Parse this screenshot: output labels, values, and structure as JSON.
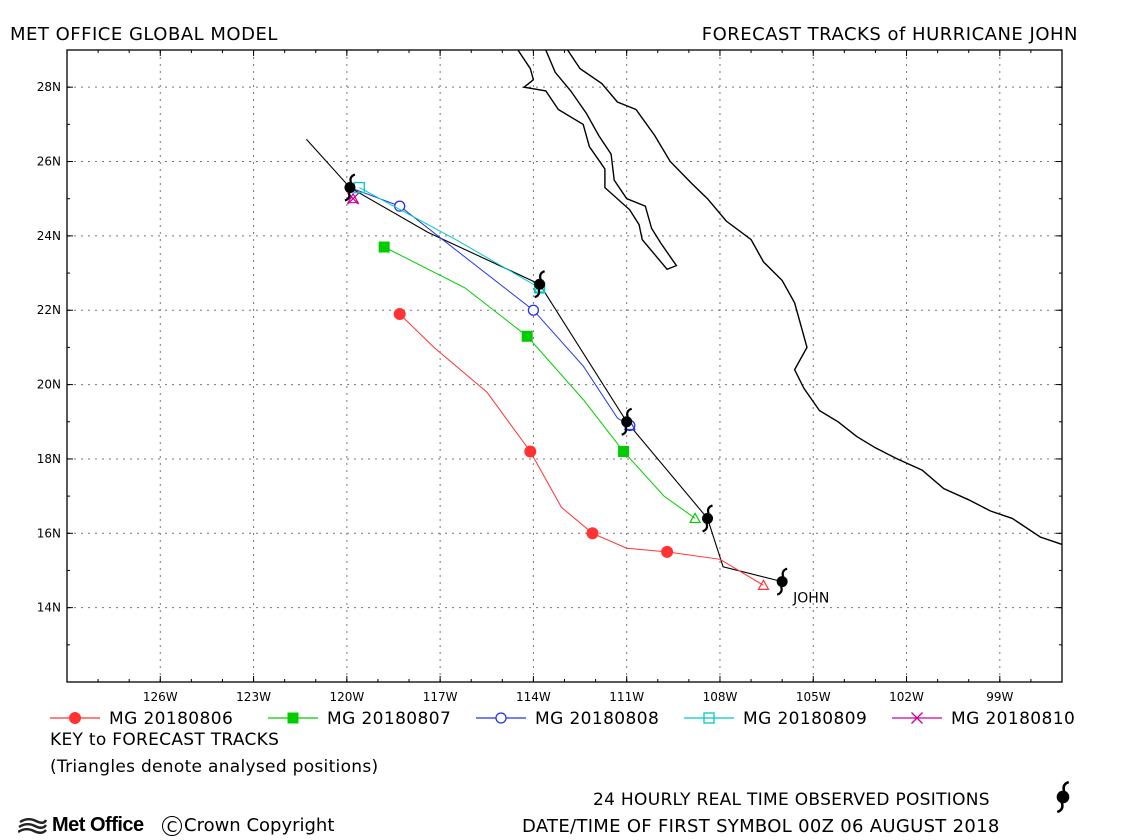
{
  "header": {
    "left": "MET OFFICE GLOBAL MODEL",
    "right": "FORECAST TRACKS of HURRICANE JOHN"
  },
  "chart_data": {
    "type": "map",
    "lon_range": [
      -129,
      -97
    ],
    "lat_range": [
      12,
      29
    ],
    "x_ticks": [
      {
        "value": -126,
        "label": "126W"
      },
      {
        "value": -123,
        "label": "123W"
      },
      {
        "value": -120,
        "label": "120W"
      },
      {
        "value": -117,
        "label": "117W"
      },
      {
        "value": -114,
        "label": "114W"
      },
      {
        "value": -111,
        "label": "111W"
      },
      {
        "value": -108,
        "label": "108W"
      },
      {
        "value": -105,
        "label": "105W"
      },
      {
        "value": -102,
        "label": "102W"
      },
      {
        "value": -99,
        "label": "99W"
      }
    ],
    "y_ticks": [
      {
        "value": 14,
        "label": "14N"
      },
      {
        "value": 16,
        "label": "16N"
      },
      {
        "value": 18,
        "label": "18N"
      },
      {
        "value": 20,
        "label": "20N"
      },
      {
        "value": 22,
        "label": "22N"
      },
      {
        "value": 24,
        "label": "24N"
      },
      {
        "value": 26,
        "label": "26N"
      },
      {
        "value": 28,
        "label": "28N"
      }
    ],
    "grid": true,
    "storm_label": "JOHN",
    "observed_track": {
      "color": "#000000",
      "points": [
        [
          -121.3,
          26.6
        ],
        [
          -119.9,
          25.3
        ],
        [
          -117.4,
          24.1
        ],
        [
          -113.8,
          22.7
        ],
        [
          -111.0,
          19.0
        ],
        [
          -108.4,
          16.4
        ],
        [
          -107.9,
          15.1
        ],
        [
          -106.0,
          14.7
        ]
      ],
      "symbols": [
        [
          -119.9,
          25.3
        ],
        [
          -113.8,
          22.7
        ],
        [
          -111.0,
          19.0
        ],
        [
          -108.4,
          16.4
        ],
        [
          -106.0,
          14.7
        ]
      ]
    },
    "series": [
      {
        "name": "MG 20180806",
        "color": "#ff3333",
        "marker": "circle-filled",
        "points": [
          [
            -106.6,
            14.6
          ],
          [
            -108.0,
            15.3
          ],
          [
            -109.7,
            15.5
          ],
          [
            -111.0,
            15.6
          ],
          [
            -112.1,
            16.0
          ],
          [
            -113.1,
            16.7
          ],
          [
            -114.1,
            18.2
          ],
          [
            -115.5,
            19.8
          ],
          [
            -117.2,
            21.0
          ],
          [
            -118.3,
            21.9
          ]
        ],
        "markers": [
          [
            -109.7,
            15.5
          ],
          [
            -112.1,
            16.0
          ],
          [
            -114.1,
            18.2
          ],
          [
            -118.3,
            21.9
          ]
        ]
      },
      {
        "name": "MG 20180807",
        "color": "#00cc00",
        "marker": "square-filled",
        "points": [
          [
            -108.8,
            16.4
          ],
          [
            -109.8,
            17.0
          ],
          [
            -111.1,
            18.2
          ],
          [
            -112.4,
            19.6
          ],
          [
            -114.2,
            21.3
          ],
          [
            -116.2,
            22.6
          ],
          [
            -118.8,
            23.7
          ]
        ],
        "markers": [
          [
            -111.1,
            18.2
          ],
          [
            -114.2,
            21.3
          ],
          [
            -118.8,
            23.7
          ]
        ]
      },
      {
        "name": "MG 20180808",
        "color": "#2233ee",
        "marker": "circle-open",
        "points": [
          [
            -110.9,
            18.9
          ],
          [
            -111.3,
            19.1
          ],
          [
            -112.4,
            20.5
          ],
          [
            -114.0,
            22.0
          ],
          [
            -116.0,
            23.3
          ],
          [
            -118.3,
            24.8
          ],
          [
            -119.9,
            25.3
          ]
        ],
        "markers": [
          [
            -110.9,
            18.9
          ],
          [
            -114.0,
            22.0
          ],
          [
            -118.3,
            24.8
          ]
        ]
      },
      {
        "name": "MG 20180809",
        "color": "#00c8c8",
        "marker": "square-open",
        "points": [
          [
            -113.8,
            22.6
          ],
          [
            -116.5,
            23.9
          ],
          [
            -119.6,
            25.3
          ]
        ],
        "markers": [
          [
            -113.8,
            22.6
          ],
          [
            -119.6,
            25.3
          ]
        ]
      },
      {
        "name": "MG 20180810",
        "color": "#cc0099",
        "marker": "cross",
        "points": [
          [
            -119.8,
            25.0
          ],
          [
            -119.9,
            25.1
          ]
        ],
        "markers": [
          [
            -119.8,
            25.0
          ]
        ]
      }
    ],
    "analysed_triangles": [
      {
        "color": "#ff3333",
        "pos": [
          -106.6,
          14.6
        ]
      },
      {
        "color": "#00cc00",
        "pos": [
          -108.8,
          16.4
        ]
      },
      {
        "color": "#2233ee",
        "pos": [
          -110.9,
          18.9
        ]
      },
      {
        "color": "#00c8c8",
        "pos": [
          -113.8,
          22.6
        ]
      },
      {
        "color": "#cc0099",
        "pos": [
          -119.8,
          25.0
        ]
      }
    ],
    "coastlines": [
      [
        [
          -114.5,
          29.0
        ],
        [
          -114.1,
          28.5
        ],
        [
          -114.0,
          28.2
        ],
        [
          -114.3,
          28.0
        ],
        [
          -113.6,
          27.9
        ],
        [
          -113.2,
          27.4
        ],
        [
          -112.4,
          27.0
        ],
        [
          -112.2,
          26.4
        ],
        [
          -111.7,
          25.8
        ],
        [
          -111.7,
          25.3
        ],
        [
          -110.9,
          24.7
        ],
        [
          -110.6,
          24.3
        ],
        [
          -110.5,
          23.9
        ],
        [
          -110.2,
          23.6
        ],
        [
          -109.7,
          23.1
        ],
        [
          -109.4,
          23.2
        ],
        [
          -109.9,
          23.8
        ],
        [
          -110.2,
          24.2
        ],
        [
          -110.4,
          24.8
        ],
        [
          -111.0,
          25.0
        ],
        [
          -111.4,
          25.5
        ],
        [
          -111.5,
          26.2
        ],
        [
          -111.9,
          26.7
        ],
        [
          -112.3,
          27.3
        ],
        [
          -112.8,
          27.9
        ],
        [
          -113.3,
          28.4
        ],
        [
          -113.6,
          29.0
        ]
      ],
      [
        [
          -112.9,
          29.0
        ],
        [
          -112.5,
          28.5
        ],
        [
          -111.8,
          28.1
        ],
        [
          -111.3,
          27.6
        ],
        [
          -110.7,
          27.4
        ],
        [
          -110.1,
          26.7
        ],
        [
          -109.6,
          26.0
        ],
        [
          -108.9,
          25.4
        ],
        [
          -108.4,
          25.0
        ],
        [
          -107.8,
          24.4
        ],
        [
          -107.0,
          23.9
        ],
        [
          -106.6,
          23.3
        ],
        [
          -106.0,
          22.8
        ],
        [
          -105.6,
          22.2
        ],
        [
          -105.4,
          21.6
        ],
        [
          -105.2,
          21.0
        ],
        [
          -105.6,
          20.4
        ],
        [
          -105.3,
          19.9
        ],
        [
          -104.8,
          19.3
        ],
        [
          -104.2,
          19.0
        ],
        [
          -103.6,
          18.6
        ],
        [
          -103.0,
          18.3
        ],
        [
          -102.3,
          18.0
        ],
        [
          -101.5,
          17.7
        ],
        [
          -100.8,
          17.2
        ],
        [
          -100.0,
          16.9
        ],
        [
          -99.3,
          16.6
        ],
        [
          -98.6,
          16.4
        ],
        [
          -97.7,
          15.9
        ],
        [
          -97.0,
          15.7
        ]
      ]
    ],
    "legend": {
      "placement": "bottom",
      "key_title": "KEY to FORECAST TRACKS",
      "note": "(Triangles denote analysed positions)"
    }
  },
  "footer": {
    "observed_label": "24 HOURLY REAL TIME OBSERVED POSITIONS",
    "datetime_label": "DATE/TIME OF FIRST SYMBOL 00Z 06 AUGUST 2018",
    "logo_text": "Met Office",
    "copyright_text": "Crown Copyright"
  }
}
